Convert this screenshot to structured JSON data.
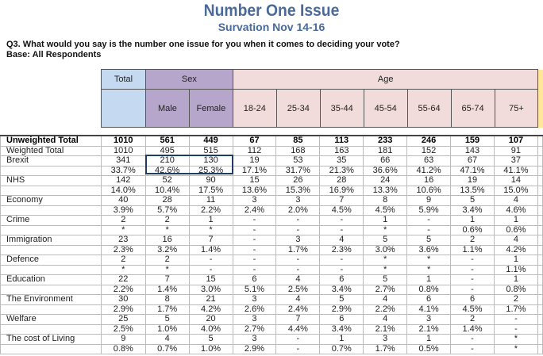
{
  "title": "Number One Issue",
  "subtitle": "Survation Nov 14-16",
  "question": "Q3. What would you say is the number one issue for you when it comes to deciding your vote?",
  "base": "Base: All Respondents",
  "colors": {
    "total": "#c5d9f1",
    "sex": "#b7a6cb",
    "age": "#f2dcdb",
    "title": "#4a6a9a",
    "highlight_box": "#1f3b66"
  },
  "header": {
    "total": "Total",
    "sex": "Sex",
    "age": "Age",
    "columns": [
      "Male",
      "Female",
      "18-24",
      "25-34",
      "35-44",
      "45-54",
      "55-64",
      "65-74",
      "75+"
    ]
  },
  "rows": [
    {
      "label": "Unweighted Total",
      "values": [
        "1010",
        "561",
        "449",
        "67",
        "85",
        "113",
        "233",
        "246",
        "159",
        "107"
      ],
      "bold": true
    },
    {
      "label": "Weighted Total",
      "values": [
        "1010",
        "495",
        "515",
        "112",
        "168",
        "163",
        "181",
        "152",
        "143",
        "91"
      ]
    },
    {
      "label": "Brexit",
      "values": [
        "341",
        "210",
        "130",
        "19",
        "53",
        "35",
        "66",
        "63",
        "67",
        "37"
      ]
    },
    {
      "label": "",
      "values": [
        "33.7%",
        "42.6%",
        "25.3%",
        "17.1%",
        "31.7%",
        "21.3%",
        "36.6%",
        "41.2%",
        "47.1%",
        "41.1%"
      ]
    },
    {
      "label": "NHS",
      "values": [
        "142",
        "52",
        "90",
        "15",
        "26",
        "28",
        "24",
        "16",
        "19",
        "14"
      ]
    },
    {
      "label": "",
      "values": [
        "14.0%",
        "10.4%",
        "17.5%",
        "13.6%",
        "15.3%",
        "16.9%",
        "13.3%",
        "10.6%",
        "13.5%",
        "15.0%"
      ]
    },
    {
      "label": "Economy",
      "values": [
        "40",
        "28",
        "11",
        "3",
        "3",
        "7",
        "8",
        "9",
        "5",
        "4"
      ]
    },
    {
      "label": "",
      "values": [
        "3.9%",
        "5.7%",
        "2.2%",
        "2.4%",
        "2.0%",
        "4.5%",
        "4.5%",
        "5.9%",
        "3.4%",
        "4.6%"
      ]
    },
    {
      "label": "Crime",
      "values": [
        "2",
        "2",
        "1",
        "-",
        "-",
        "-",
        "1",
        "-",
        "1",
        "1"
      ]
    },
    {
      "label": "",
      "values": [
        "*",
        "*",
        "*",
        "-",
        "-",
        "-",
        "*",
        "-",
        "0.6%",
        "0.6%"
      ]
    },
    {
      "label": "Immigration",
      "values": [
        "23",
        "16",
        "7",
        "-",
        "3",
        "4",
        "5",
        "5",
        "2",
        "4"
      ]
    },
    {
      "label": "",
      "values": [
        "2.3%",
        "3.2%",
        "1.4%",
        "-",
        "1.7%",
        "2.3%",
        "3.0%",
        "3.6%",
        "1.1%",
        "4.2%"
      ]
    },
    {
      "label": "Defence",
      "values": [
        "2",
        "2",
        "-",
        "-",
        "-",
        "-",
        "*",
        "*",
        "-",
        "1"
      ]
    },
    {
      "label": "",
      "values": [
        "*",
        "*",
        "-",
        "-",
        "-",
        "-",
        "*",
        "*",
        "-",
        "1.1%"
      ]
    },
    {
      "label": "Education",
      "values": [
        "22",
        "7",
        "15",
        "6",
        "4",
        "6",
        "5",
        "1",
        "-",
        "1"
      ]
    },
    {
      "label": "",
      "values": [
        "2.2%",
        "1.4%",
        "3.0%",
        "5.1%",
        "2.5%",
        "3.4%",
        "2.7%",
        "0.8%",
        "-",
        "0.8%"
      ]
    },
    {
      "label": "The Environment",
      "values": [
        "30",
        "8",
        "21",
        "3",
        "4",
        "5",
        "4",
        "6",
        "6",
        "2"
      ]
    },
    {
      "label": "",
      "values": [
        "2.9%",
        "1.7%",
        "4.2%",
        "2.6%",
        "2.4%",
        "2.9%",
        "2.2%",
        "4.1%",
        "4.5%",
        "1.7%"
      ]
    },
    {
      "label": "Welfare",
      "values": [
        "25",
        "5",
        "20",
        "3",
        "7",
        "6",
        "4",
        "3",
        "2",
        "-"
      ]
    },
    {
      "label": "",
      "values": [
        "2.5%",
        "1.0%",
        "4.0%",
        "2.7%",
        "4.4%",
        "3.4%",
        "2.1%",
        "2.1%",
        "1.4%",
        "-"
      ]
    },
    {
      "label": "The cost of Living",
      "values": [
        "9",
        "4",
        "5",
        "3",
        "-",
        "1",
        "3",
        "1",
        "-",
        "*"
      ]
    },
    {
      "label": "",
      "values": [
        "0.8%",
        "0.7%",
        "1.0%",
        "2.9%",
        "-",
        "0.7%",
        "1.7%",
        "0.5%",
        "-",
        "*"
      ]
    }
  ]
}
